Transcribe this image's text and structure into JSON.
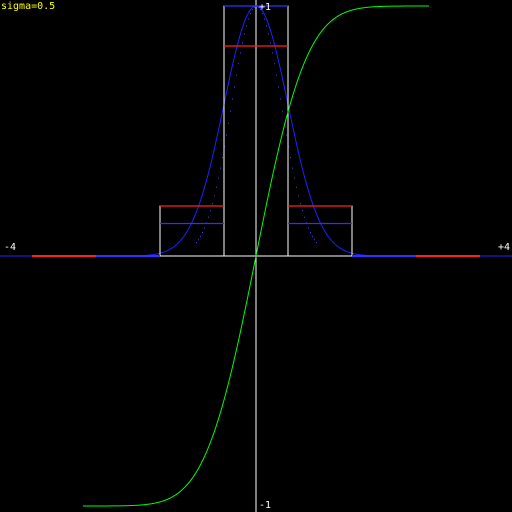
{
  "annotation": "sigma=0.5",
  "chart_data": {
    "type": "line",
    "title": "",
    "xlim": [
      -4,
      4
    ],
    "ylim": [
      -1,
      1
    ],
    "tick_labels": {
      "x_min": "-4",
      "x_max": "+4",
      "y_max": "+1",
      "y_min": "-1"
    },
    "sigma": 0.5,
    "grid": false,
    "colors": {
      "background": "#000000",
      "axes": "#ffffff",
      "gaussian_curve": "#2020ff",
      "gaussian_dots": "#4040ff",
      "erf_curve": "#00ff00",
      "bins_outline": "#ffffff",
      "bins_red": "#ff2020",
      "bins_blue": "#3030ff",
      "annotation": "#ffff00"
    },
    "series": [
      {
        "kind": "gaussian",
        "values_formula": "exp(-x^2/(2*sigma^2))",
        "peak": 1.0
      },
      {
        "kind": "erf",
        "values_formula": "erf(x/(sigma*sqrt(2)))",
        "x_start": -2.7,
        "x_end": 2.7
      },
      {
        "kind": "bins",
        "edges": [
          -1.5,
          -0.5,
          0.5,
          1.5
        ],
        "outline_heights": [
          0.2,
          1.0,
          0.2
        ],
        "red_levels": [
          0.2,
          0.84,
          0.2
        ],
        "blue_levels": [
          0.13,
          1.0,
          0.13
        ]
      },
      {
        "kind": "baseline_segments",
        "red": [
          [
            -3.5,
            -2.5
          ],
          [
            2.5,
            3.5
          ]
        ],
        "blue": [
          [
            -2.5,
            -1.5
          ],
          [
            1.5,
            2.5
          ]
        ]
      }
    ]
  }
}
